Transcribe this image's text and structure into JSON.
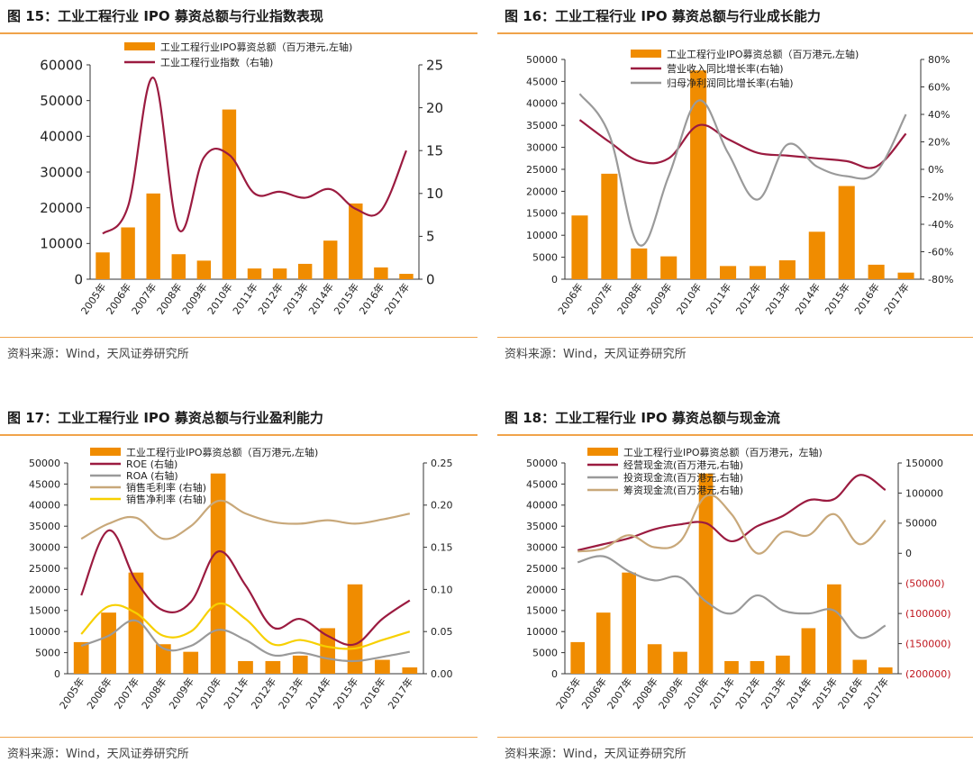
{
  "source_text": "资料来源：Wind，天风证券研究所",
  "chart_data": [
    {
      "id": "fig15",
      "type": "bar+line",
      "title": "图 15：工业工程行业 IPO 募资总额与行业指数表现",
      "categories": [
        "2005年",
        "2006年",
        "2007年",
        "2008年",
        "2009年",
        "2010年",
        "2011年",
        "2012年",
        "2013年",
        "2014年",
        "2015年",
        "2016年",
        "2017年"
      ],
      "bar_series": {
        "name": "工业工程行业IPO募资总额（百万港元,左轴)",
        "color": "#f08c00",
        "values": [
          7500,
          14500,
          24000,
          7000,
          5200,
          47500,
          3000,
          3000,
          4300,
          10800,
          21200,
          3300,
          1500
        ]
      },
      "line_series": [
        {
          "name": "工业工程行业指数（右轴)",
          "color": "#9b1b40",
          "values": [
            5.3,
            8.5,
            23.5,
            5.8,
            14.2,
            14.5,
            10.0,
            10.2,
            9.5,
            10.5,
            8.2,
            8.0,
            15.0
          ]
        }
      ],
      "y_left": {
        "min": 0,
        "max": 60000,
        "ticks": [
          "0",
          "10000",
          "20000",
          "30000",
          "40000",
          "50000",
          "60000"
        ]
      },
      "y_right": {
        "min": 0,
        "max": 25,
        "ticks": [
          "0",
          "5",
          "10",
          "15",
          "20",
          "25"
        ],
        "color": "#222"
      }
    },
    {
      "id": "fig16",
      "type": "bar+line",
      "title": "图 16：工业工程行业 IPO 募资总额与行业成长能力",
      "categories": [
        "2006年",
        "2007年",
        "2008年",
        "2009年",
        "2010年",
        "2011年",
        "2012年",
        "2013年",
        "2014年",
        "2015年",
        "2016年",
        "2017年"
      ],
      "bar_series": {
        "name": "工业工程行业IPO募资总额（百万港元,左轴)",
        "color": "#f08c00",
        "values": [
          14500,
          24000,
          7000,
          5200,
          47500,
          3000,
          3000,
          4300,
          10800,
          21200,
          3300,
          1500
        ]
      },
      "line_series": [
        {
          "name": "营业收入同比增长率(右轴)",
          "color": "#9b1b40",
          "values": [
            0.36,
            0.2,
            0.06,
            0.08,
            0.32,
            0.22,
            0.12,
            0.1,
            0.08,
            0.06,
            0.02,
            0.26
          ]
        },
        {
          "name": "归母净利润同比增长率(右轴)",
          "color": "#9a9a9a",
          "values": [
            0.55,
            0.25,
            -0.55,
            -0.05,
            0.5,
            0.12,
            -0.22,
            0.18,
            0.02,
            -0.05,
            -0.02,
            0.4
          ]
        }
      ],
      "y_left": {
        "min": 0,
        "max": 50000,
        "ticks": [
          "0",
          "5000",
          "10000",
          "15000",
          "20000",
          "25000",
          "30000",
          "35000",
          "40000",
          "45000",
          "50000"
        ]
      },
      "y_right": {
        "min": -0.8,
        "max": 0.8,
        "ticks": [
          "-80%",
          "-60%",
          "-40%",
          "-20%",
          "0%",
          "20%",
          "40%",
          "60%",
          "80%"
        ],
        "color": "#222"
      }
    },
    {
      "id": "fig17",
      "type": "bar+line",
      "title": "图 17：工业工程行业 IPO 募资总额与行业盈利能力",
      "categories": [
        "2005年",
        "2006年",
        "2007年",
        "2008年",
        "2009年",
        "2010年",
        "2011年",
        "2012年",
        "2013年",
        "2014年",
        "2015年",
        "2016年",
        "2017年"
      ],
      "bar_series": {
        "name": "工业工程行业IPO募资总额（百万港元,左轴)",
        "color": "#f08c00",
        "values": [
          7500,
          14500,
          24000,
          7000,
          5200,
          47500,
          3000,
          3000,
          4300,
          10800,
          21200,
          3300,
          1500
        ]
      },
      "line_series": [
        {
          "name": "ROE (右轴)",
          "color": "#9b1b40",
          "values": [
            0.093,
            0.17,
            0.11,
            0.075,
            0.085,
            0.145,
            0.105,
            0.055,
            0.065,
            0.045,
            0.035,
            0.065,
            0.087
          ]
        },
        {
          "name": "ROA (右轴)",
          "color": "#9a9a9a",
          "values": [
            0.033,
            0.045,
            0.063,
            0.03,
            0.033,
            0.052,
            0.04,
            0.022,
            0.025,
            0.018,
            0.015,
            0.02,
            0.026
          ]
        },
        {
          "name": "销售毛利率 (右轴)",
          "color": "#c8a87a",
          "values": [
            0.16,
            0.178,
            0.185,
            0.16,
            0.175,
            0.205,
            0.19,
            0.18,
            0.178,
            0.182,
            0.178,
            0.183,
            0.19
          ]
        },
        {
          "name": "销售净利率 (右轴)",
          "color": "#f7d000",
          "values": [
            0.047,
            0.08,
            0.072,
            0.045,
            0.05,
            0.083,
            0.065,
            0.035,
            0.04,
            0.032,
            0.03,
            0.04,
            0.05
          ]
        }
      ],
      "y_left": {
        "min": 0,
        "max": 50000,
        "ticks": [
          "0",
          "5000",
          "10000",
          "15000",
          "20000",
          "25000",
          "30000",
          "35000",
          "40000",
          "45000",
          "50000"
        ]
      },
      "y_right": {
        "min": 0,
        "max": 0.25,
        "ticks": [
          "0.00",
          "0.05",
          "0.10",
          "0.15",
          "0.20",
          "0.25"
        ],
        "color": "#222"
      }
    },
    {
      "id": "fig18",
      "type": "bar+line",
      "title": "图 18：工业工程行业 IPO 募资总额与现金流",
      "categories": [
        "2005年",
        "2006年",
        "2007年",
        "2008年",
        "2009年",
        "2010年",
        "2011年",
        "2012年",
        "2013年",
        "2014年",
        "2015年",
        "2016年",
        "2017年"
      ],
      "bar_series": {
        "name": "工业工程行业IPO募资总额（百万港元，左轴)",
        "color": "#f08c00",
        "values": [
          7500,
          14500,
          24000,
          7000,
          5200,
          47500,
          3000,
          3000,
          4300,
          10800,
          21200,
          3300,
          1500
        ]
      },
      "line_series": [
        {
          "name": "经营现金流(百万港元,右轴)",
          "color": "#9b1b40",
          "values": [
            5000,
            15000,
            25000,
            40000,
            48000,
            50000,
            20000,
            45000,
            62000,
            88000,
            90000,
            130000,
            105000
          ]
        },
        {
          "name": "投资现金流(百万港元,右轴)",
          "color": "#9a9a9a",
          "values": [
            -15000,
            -5000,
            -30000,
            -45000,
            -40000,
            -80000,
            -100000,
            -70000,
            -95000,
            -100000,
            -95000,
            -140000,
            -120000
          ]
        },
        {
          "name": "筹资现金流(百万港元,右轴)",
          "color": "#c8a87a",
          "values": [
            3000,
            8000,
            30000,
            10000,
            20000,
            95000,
            65000,
            0,
            35000,
            30000,
            65000,
            15000,
            55000
          ]
        }
      ],
      "y_left": {
        "min": 0,
        "max": 50000,
        "ticks": [
          "0",
          "5000",
          "10000",
          "15000",
          "20000",
          "25000",
          "30000",
          "35000",
          "40000",
          "45000",
          "50000"
        ]
      },
      "y_right": {
        "min": -200000,
        "max": 150000,
        "ticks": [
          "(200000)",
          "(150000)",
          "(100000)",
          "(50000)",
          "0",
          "50000",
          "100000",
          "150000"
        ],
        "color": "#c0161e",
        "pos_color": "#222"
      }
    }
  ]
}
